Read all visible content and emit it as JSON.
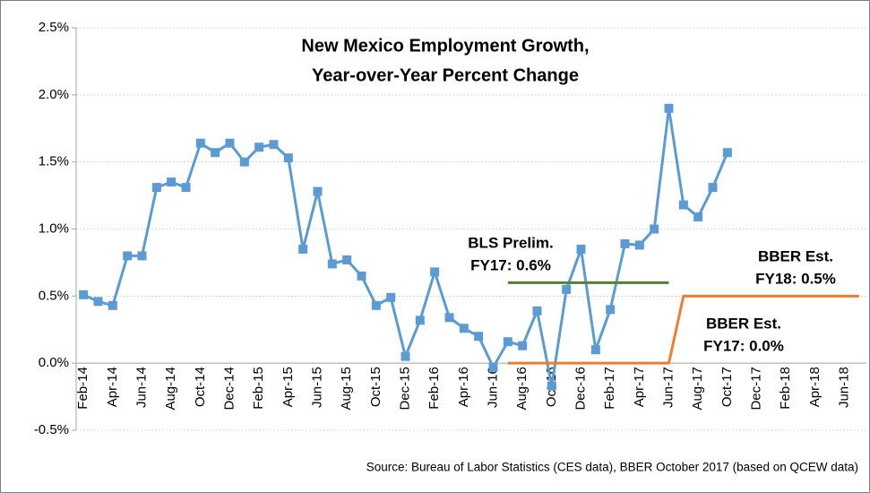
{
  "chart_data": {
    "type": "line",
    "title": [
      "New Mexico Employment Growth,",
      "Year-over-Year Percent Change"
    ],
    "source": "Source: Bureau of Labor Statistics (CES data), BBER October 2017 (based on QCEW data)",
    "categories": [
      "Feb-14",
      null,
      "Apr-14",
      null,
      "Jun-14",
      null,
      "Aug-14",
      null,
      "Oct-14",
      null,
      "Dec-14",
      null,
      "Feb-15",
      null,
      "Apr-15",
      null,
      "Jun-15",
      null,
      "Aug-15",
      null,
      "Oct-15",
      null,
      "Dec-15",
      null,
      "Feb-16",
      null,
      "Apr-16",
      null,
      "Jun-16",
      null,
      "Aug-16",
      null,
      "Oct-16",
      null,
      "Dec-16",
      null,
      "Feb-17",
      null,
      "Apr-17",
      null,
      "Jun-17",
      null,
      "Aug-17",
      null,
      "Oct-17",
      null,
      "Dec-17",
      null,
      "Feb-18",
      null,
      "Apr-18",
      null,
      "Jun-18",
      null
    ],
    "series": [
      {
        "color": "#5b9bd5",
        "marker": "square",
        "values": [
          0.51,
          0.46,
          0.43,
          0.8,
          0.8,
          1.31,
          1.35,
          1.31,
          1.64,
          1.57,
          1.64,
          1.5,
          1.61,
          1.63,
          1.53,
          0.85,
          1.28,
          0.74,
          0.77,
          0.65,
          0.43,
          0.49,
          0.05,
          0.32,
          0.68,
          0.34,
          0.26,
          0.2,
          -0.03,
          0.16,
          0.13,
          0.39,
          -0.17,
          0.55,
          0.85,
          0.1,
          0.4,
          0.89,
          0.88,
          1.0,
          1.9,
          1.18,
          1.09,
          1.31,
          1.57,
          null,
          null,
          null,
          null,
          null,
          null,
          null,
          null,
          null
        ]
      },
      {
        "color": "#548235",
        "values": [
          null,
          null,
          null,
          null,
          null,
          null,
          null,
          null,
          null,
          null,
          null,
          null,
          null,
          null,
          null,
          null,
          null,
          null,
          null,
          null,
          null,
          null,
          null,
          null,
          null,
          null,
          null,
          null,
          null,
          0.6,
          0.6,
          0.6,
          0.6,
          0.6,
          0.6,
          0.6,
          0.6,
          0.6,
          0.6,
          0.6,
          0.6,
          null,
          null,
          null,
          null,
          null,
          null,
          null,
          null,
          null,
          null,
          null,
          null,
          null
        ]
      },
      {
        "color": "#ed7d31",
        "values": [
          null,
          null,
          null,
          null,
          null,
          null,
          null,
          null,
          null,
          null,
          null,
          null,
          null,
          null,
          null,
          null,
          null,
          null,
          null,
          null,
          null,
          null,
          null,
          null,
          null,
          null,
          null,
          null,
          null,
          0,
          0,
          0,
          0,
          0,
          0,
          0,
          0,
          0,
          0,
          0,
          0,
          0.5,
          0.5,
          0.5,
          0.5,
          0.5,
          0.5,
          0.5,
          0.5,
          0.5,
          0.5,
          0.5,
          0.5,
          0.5
        ]
      }
    ],
    "annotations": [
      [
        "BLS Prelim.",
        "FY17: 0.6%"
      ],
      [
        "BBER Est.",
        "FY18: 0.5%"
      ],
      [
        "BBER Est.",
        "FY17: 0.0%"
      ]
    ],
    "ylim": [
      -0.5,
      2.5
    ],
    "yticks": [
      {
        "value": -0.5,
        "label": "-0.5%"
      },
      {
        "value": 0,
        "label": "0.0%"
      },
      {
        "value": 0.5,
        "label": "0.5%"
      },
      {
        "value": 1,
        "label": "1.0%"
      },
      {
        "value": 1.5,
        "label": "1.5%"
      },
      {
        "value": 2,
        "label": "2.0%"
      },
      {
        "value": 2.5,
        "label": "2.5%"
      }
    ],
    "grid": true
  }
}
